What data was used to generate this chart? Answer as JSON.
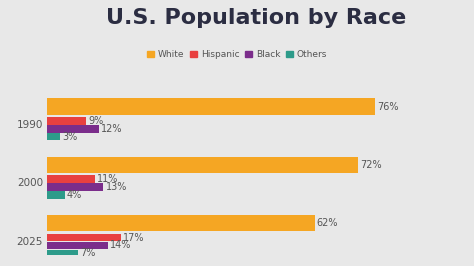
{
  "title": "U.S. Population by Race",
  "title_fontsize": 16,
  "title_fontweight": "bold",
  "title_color": "#2b2d42",
  "background_color": "#e8e8e8",
  "years": [
    "1990",
    "2000",
    "2025"
  ],
  "categories": [
    "White",
    "Hispanic",
    "Black",
    "Others"
  ],
  "colors": [
    "#f5a623",
    "#e84040",
    "#7b2d8b",
    "#2d9b8a"
  ],
  "data": {
    "1990": [
      76,
      9,
      12,
      3
    ],
    "2000": [
      72,
      11,
      13,
      4
    ],
    "2025": [
      62,
      17,
      14,
      7
    ]
  },
  "legend_labels": [
    "White",
    "Hispanic",
    "Black",
    "Others"
  ],
  "white_bar_height": 0.28,
  "small_bar_height": 0.13,
  "xlim": [
    0,
    88
  ],
  "label_fontsize": 7,
  "year_fontsize": 7.5,
  "legend_fontsize": 6.5,
  "label_color": "#555555",
  "year_label_color": "#555555"
}
